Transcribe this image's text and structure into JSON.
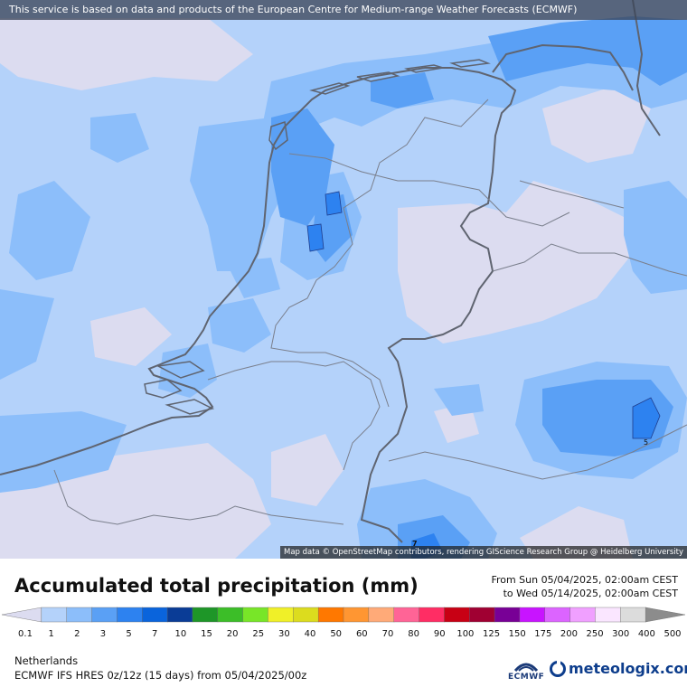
{
  "notice": "This service is based on data and products of the European Centre for Medium-range Weather Forecasts (ECMWF)",
  "attribution": "Map data © OpenStreetMap contributors, rendering GIScience Research Group @ Heidelberg University",
  "title": "Accumulated total precipitation (mm)",
  "period": {
    "from": "From Sun 05/04/2025, 02:00am CEST",
    "to": "to Wed 05/14/2025, 02:00am CEST"
  },
  "region": "Netherlands",
  "model_info": "ECMWF IFS HRES 0z/12z (15 days) from  05/04/2025/00z",
  "brand": {
    "ecmwf": "ECMWF",
    "meteologix": "meteologix.com"
  },
  "map_labels": {
    "local_max_east": "5",
    "local_max_south": "7"
  },
  "scale": {
    "labels": [
      "0.1",
      "1",
      "2",
      "3",
      "5",
      "7",
      "10",
      "15",
      "20",
      "25",
      "30",
      "40",
      "50",
      "60",
      "70",
      "80",
      "90",
      "100",
      "125",
      "150",
      "175",
      "200",
      "250",
      "300",
      "400",
      "500"
    ],
    "colors": [
      "#dcdcf0",
      "#b4d2fa",
      "#8cbefa",
      "#5aa0f5",
      "#2d82f0",
      "#0a64dc",
      "#0a3c96",
      "#1e9628",
      "#3cbe28",
      "#78e628",
      "#f0f028",
      "#dcdc1e",
      "#ff7800",
      "#ff9632",
      "#ffaa78",
      "#ff6496",
      "#ff2d64",
      "#c80014",
      "#a00032",
      "#780096",
      "#c814ff",
      "#dc64ff",
      "#f0a0ff",
      "#fae6ff",
      "#dcdcdc",
      "#8c8c8c"
    ]
  }
}
